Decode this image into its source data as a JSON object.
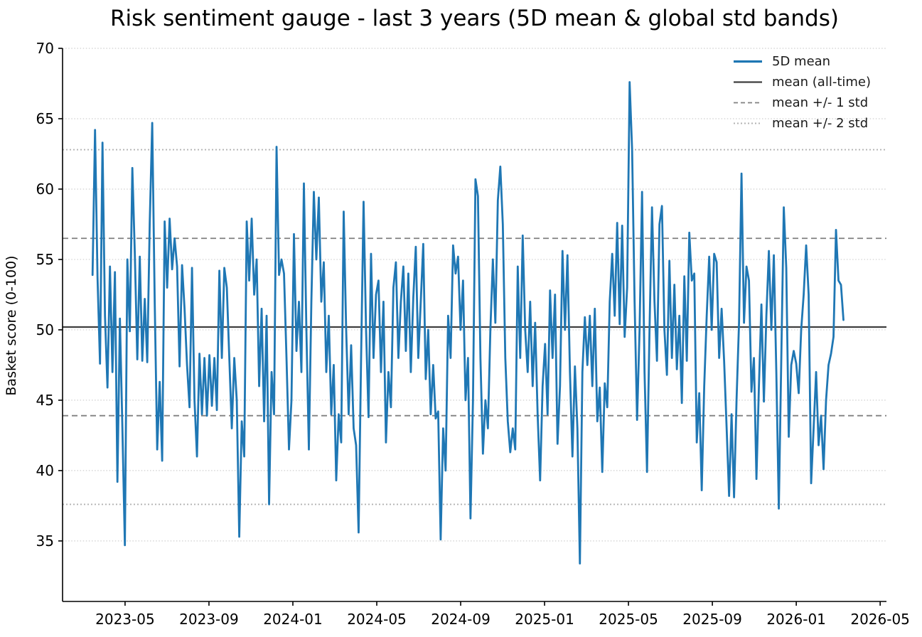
{
  "title": "Risk sentiment gauge - last 3 years (5D mean & global std bands)",
  "y_axis": {
    "label": "Basket score (0-100)"
  },
  "legend": {
    "items": [
      {
        "label": "5D mean",
        "style": "series"
      },
      {
        "label": "mean (all-time)",
        "style": "mean"
      },
      {
        "label": "mean +/- 1 std",
        "style": "std1"
      },
      {
        "label": "mean +/- 2 std",
        "style": "std2"
      }
    ]
  },
  "chart_data": {
    "type": "line",
    "title": "Risk sentiment gauge - last 3 years (5D mean & global std bands)",
    "xlabel": "",
    "ylabel": "Basket score (0-100)",
    "ylim": [
      30.7,
      70
    ],
    "y_ticks": [
      35,
      40,
      45,
      50,
      55,
      60,
      65,
      70
    ],
    "x_ticks": [
      {
        "m": 0,
        "label": "2023-05"
      },
      {
        "m": 4,
        "label": "2023-09"
      },
      {
        "m": 8,
        "label": "2024-01"
      },
      {
        "m": 12,
        "label": "2024-05"
      },
      {
        "m": 16,
        "label": "2024-09"
      },
      {
        "m": 20,
        "label": "2025-01"
      },
      {
        "m": 24,
        "label": "2025-05"
      },
      {
        "m": 28,
        "label": "2025-09"
      },
      {
        "m": 32,
        "label": "2026-01"
      },
      {
        "m": 36,
        "label": "2026-05"
      }
    ],
    "xlim_months": [
      -2.98,
      36.3
    ],
    "data_start_month": -1.55,
    "data_end_month": 34.25,
    "x_start_date": "2023-03",
    "x_end_date": "2026-03",
    "grid": "y-only-dotted",
    "legend_position": "upper right",
    "reference_lines": {
      "mean": 50.2,
      "plus_1_std": 56.5,
      "minus_1_std": 43.9,
      "plus_2_std": 62.8,
      "minus_2_std": 37.6
    },
    "colors": {
      "series": "#1f77b4",
      "mean_line": "#3f3f3f",
      "std1_line": "#808080",
      "std2_line": "#b3b3b3",
      "grid": "#cfcfcf",
      "axis": "#000000"
    },
    "series": [
      {
        "name": "5D mean",
        "color": "#1f77b4",
        "values": [
          53.9,
          64.2,
          53.7,
          47.6,
          63.3,
          51.0,
          45.9,
          54.5,
          47.0,
          54.1,
          39.2,
          50.8,
          43.0,
          34.7,
          55.0,
          49.9,
          61.5,
          55.4,
          47.9,
          55.2,
          47.8,
          52.2,
          47.7,
          57.6,
          64.7,
          52.0,
          41.5,
          46.3,
          40.7,
          57.7,
          53.0,
          57.9,
          54.3,
          56.5,
          54.5,
          47.4,
          54.6,
          51.5,
          47.5,
          44.5,
          54.4,
          45.0,
          41.0,
          48.3,
          44.0,
          48.0,
          43.9,
          48.2,
          44.6,
          48.0,
          44.3,
          54.2,
          48.0,
          54.4,
          53.0,
          48.0,
          43.0,
          48.0,
          45.0,
          35.3,
          43.5,
          41.0,
          57.7,
          53.5,
          57.9,
          52.5,
          55.0,
          46.0,
          51.5,
          43.5,
          51.0,
          37.6,
          47.0,
          44.0,
          63.0,
          53.9,
          55.0,
          54.0,
          48.0,
          41.5,
          45.0,
          56.8,
          48.5,
          52.0,
          47.0,
          60.4,
          50.0,
          41.5,
          52.0,
          59.8,
          55.0,
          59.4,
          52.0,
          54.8,
          47.0,
          51.0,
          44.0,
          47.5,
          39.3,
          44.0,
          42.0,
          58.4,
          50.0,
          44.0,
          48.9,
          43.0,
          41.8,
          35.6,
          48.0,
          59.1,
          50.0,
          43.8,
          55.4,
          48.0,
          52.5,
          53.5,
          47.0,
          52.0,
          42.0,
          47.0,
          44.5,
          53.0,
          54.8,
          48.0,
          52.0,
          54.5,
          48.5,
          54.0,
          47.0,
          52.3,
          55.9,
          48.0,
          52.0,
          56.1,
          46.5,
          50.0,
          44.0,
          47.5,
          43.7,
          44.2,
          35.1,
          43.0,
          40.0,
          51.0,
          48.0,
          56.0,
          54.0,
          55.2,
          50.0,
          53.5,
          45.0,
          48.0,
          36.6,
          45.0,
          60.7,
          59.5,
          48.0,
          41.2,
          45.0,
          43.0,
          50.0,
          55.0,
          50.5,
          59.2,
          61.6,
          57.5,
          48.0,
          43.5,
          41.3,
          43.0,
          41.5,
          54.5,
          48.0,
          56.7,
          50.0,
          47.0,
          52.0,
          46.0,
          50.5,
          44.0,
          39.3,
          46.0,
          49.0,
          44.0,
          52.8,
          48.0,
          52.5,
          41.9,
          46.0,
          55.6,
          50.0,
          55.3,
          47.0,
          41.0,
          47.4,
          43.0,
          33.4,
          47.0,
          50.9,
          47.5,
          51.0,
          46.0,
          51.5,
          43.5,
          45.9,
          39.9,
          46.2,
          44.5,
          52.0,
          55.4,
          51.0,
          57.6,
          50.4,
          57.4,
          49.5,
          53.0,
          67.6,
          62.8,
          52.0,
          43.6,
          50.0,
          59.8,
          47.0,
          39.9,
          50.0,
          58.7,
          52.0,
          47.8,
          57.5,
          58.8,
          50.0,
          46.8,
          54.9,
          48.0,
          53.2,
          47.2,
          51.0,
          44.8,
          53.8,
          47.8,
          56.9,
          53.5,
          54.0,
          42.0,
          45.5,
          38.6,
          46.0,
          51.0,
          55.2,
          50.0,
          55.4,
          54.8,
          48.0,
          51.5,
          47.8,
          43.1,
          38.2,
          44.0,
          38.1,
          45.0,
          50.5,
          61.1,
          50.5,
          54.5,
          53.5,
          45.6,
          48.0,
          39.4,
          46.0,
          51.8,
          44.9,
          51.0,
          55.6,
          50.0,
          55.3,
          47.0,
          37.3,
          48.0,
          58.7,
          54.4,
          42.4,
          47.5,
          48.5,
          47.6,
          45.5,
          50.0,
          52.5,
          56.0,
          52.5,
          39.1,
          43.0,
          47.0,
          41.8,
          43.9,
          40.1,
          45.0,
          47.5,
          48.3,
          49.5,
          57.1,
          53.5,
          53.2,
          50.7
        ]
      }
    ]
  }
}
